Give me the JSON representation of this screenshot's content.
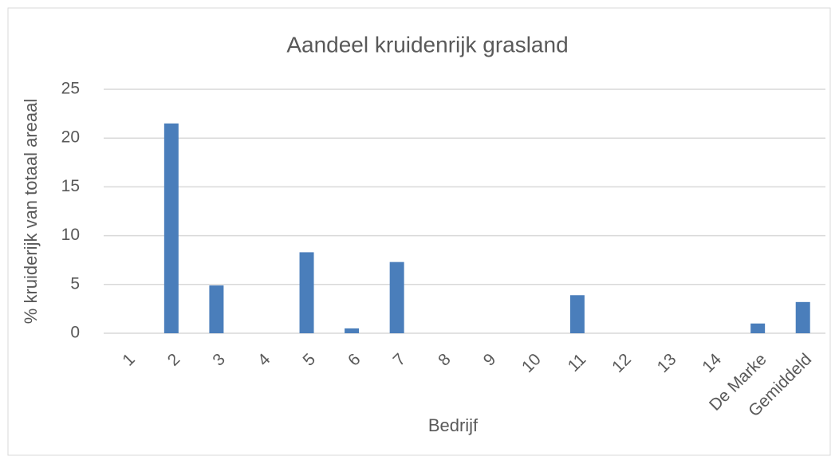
{
  "chart_data": {
    "type": "bar",
    "title": "Aandeel kruidenrijk grasland",
    "x_label": "Bedrijf",
    "y_label": "% kruiderijk van totaal areaal",
    "categories": [
      "1",
      "2",
      "3",
      "4",
      "5",
      "6",
      "7",
      "8",
      "9",
      "10",
      "11",
      "12",
      "13",
      "14",
      "De Marke",
      "Gemiddeld"
    ],
    "values": [
      0,
      21.5,
      4.9,
      0,
      8.3,
      0.5,
      7.3,
      0,
      0,
      0,
      3.9,
      0,
      0,
      0,
      1.0,
      3.2
    ],
    "color": "#4a7ebb",
    "ylim": [
      0,
      25
    ],
    "yticks": [
      0,
      5,
      10,
      15,
      20,
      25
    ],
    "grid": true
  }
}
